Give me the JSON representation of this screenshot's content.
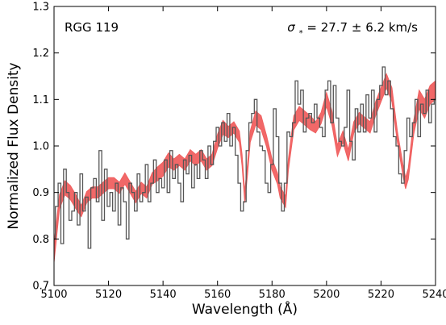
{
  "chart_data": {
    "type": "line",
    "title": "",
    "xlabel": "Wavelength (Å)",
    "ylabel": "Normalized Flux Density",
    "xlim": [
      5100,
      5240
    ],
    "ylim": [
      0.7,
      1.3
    ],
    "xticks": [
      "5100",
      "5120",
      "5140",
      "5160",
      "5180",
      "5200",
      "5220",
      "5240"
    ],
    "yticks": [
      "0.7",
      "0.8",
      "0.9",
      "1.0",
      "1.1",
      "1.2",
      "1.3"
    ],
    "grid": false,
    "legend": "none",
    "annotations": {
      "object": "RGG 119",
      "sigma_symbol": "σ",
      "sigma_subscript": "*",
      "sigma_text": "= 27.7 ± 6.2 km/s"
    },
    "colors": {
      "data": "#555555",
      "model": "#f06060"
    },
    "series": [
      {
        "style": "step",
        "x": [
          5100,
          5101,
          5102,
          5103,
          5104,
          5105,
          5106,
          5107,
          5108,
          5109,
          5110,
          5111,
          5112,
          5113,
          5114,
          5115,
          5116,
          5117,
          5118,
          5119,
          5120,
          5121,
          5122,
          5123,
          5124,
          5125,
          5126,
          5127,
          5128,
          5129,
          5130,
          5131,
          5132,
          5133,
          5134,
          5135,
          5136,
          5137,
          5138,
          5139,
          5140,
          5141,
          5142,
          5143,
          5144,
          5145,
          5146,
          5147,
          5148,
          5149,
          5150,
          5151,
          5152,
          5153,
          5154,
          5155,
          5156,
          5157,
          5158,
          5159,
          5160,
          5161,
          5162,
          5163,
          5164,
          5165,
          5166,
          5167,
          5168,
          5169,
          5170,
          5171,
          5172,
          5173,
          5174,
          5175,
          5176,
          5177,
          5178,
          5179,
          5180,
          5181,
          5182,
          5183,
          5184,
          5185,
          5186,
          5187,
          5188,
          5189,
          5190,
          5191,
          5192,
          5193,
          5194,
          5195,
          5196,
          5197,
          5198,
          5199,
          5200,
          5201,
          5202,
          5203,
          5204,
          5205,
          5206,
          5207,
          5208,
          5209,
          5210,
          5211,
          5212,
          5213,
          5214,
          5215,
          5216,
          5217,
          5218,
          5219,
          5220,
          5221,
          5222,
          5223,
          5224,
          5225,
          5226,
          5227,
          5228,
          5229,
          5230,
          5231,
          5232,
          5233,
          5234,
          5235,
          5236,
          5237,
          5238,
          5239,
          5240
        ],
        "values": [
          0.8,
          0.87,
          0.92,
          0.79,
          0.95,
          0.9,
          0.84,
          0.86,
          0.9,
          0.83,
          0.94,
          0.86,
          0.89,
          0.78,
          0.91,
          0.93,
          0.88,
          0.99,
          0.84,
          0.95,
          0.87,
          0.9,
          0.86,
          0.92,
          0.83,
          0.91,
          0.88,
          0.8,
          0.92,
          0.9,
          0.86,
          0.94,
          0.88,
          0.9,
          0.96,
          0.88,
          0.92,
          0.97,
          0.9,
          0.93,
          0.91,
          0.97,
          0.9,
          0.99,
          0.93,
          0.96,
          0.92,
          0.88,
          0.97,
          0.94,
          0.98,
          0.91,
          0.96,
          0.93,
          0.99,
          0.97,
          0.93,
          1.0,
          0.96,
          1.01,
          1.04,
          1.0,
          1.05,
          1.01,
          1.07,
          1.0,
          1.04,
          0.98,
          0.92,
          0.86,
          0.88,
          0.99,
          1.05,
          1.07,
          1.1,
          1.03,
          1.0,
          0.99,
          0.92,
          0.9,
          0.96,
          1.08,
          1.02,
          0.92,
          0.86,
          0.92,
          1.03,
          1.02,
          1.05,
          1.14,
          1.09,
          1.12,
          1.03,
          1.06,
          1.07,
          1.05,
          1.09,
          1.06,
          1.04,
          1.02,
          1.12,
          1.14,
          1.05,
          1.13,
          1.06,
          1.01,
          1.0,
          1.04,
          1.12,
          1.01,
          0.97,
          1.08,
          1.03,
          1.09,
          1.03,
          1.11,
          1.06,
          1.12,
          1.03,
          1.1,
          1.13,
          1.17,
          1.11,
          1.14,
          1.08,
          1.02,
          1.0,
          0.94,
          0.92,
          0.99,
          1.06,
          1.02,
          1.05,
          1.1,
          1.02,
          1.09,
          1.07,
          1.12,
          1.05,
          1.09,
          1.1
        ]
      },
      {
        "style": "band",
        "x": [
          5100,
          5102,
          5104,
          5106,
          5108,
          5110,
          5112,
          5114,
          5116,
          5118,
          5120,
          5122,
          5124,
          5126,
          5128,
          5130,
          5132,
          5134,
          5136,
          5138,
          5140,
          5142,
          5144,
          5146,
          5148,
          5150,
          5152,
          5154,
          5156,
          5158,
          5160,
          5162,
          5164,
          5166,
          5168,
          5169,
          5170,
          5171,
          5172,
          5174,
          5176,
          5178,
          5180,
          5182,
          5183,
          5184,
          5185,
          5186,
          5188,
          5190,
          5192,
          5194,
          5196,
          5198,
          5200,
          5202,
          5204,
          5206,
          5208,
          5210,
          5212,
          5214,
          5216,
          5218,
          5220,
          5222,
          5224,
          5226,
          5228,
          5229,
          5230,
          5232,
          5234,
          5236,
          5238,
          5240
        ],
        "values": [
          0.77,
          0.88,
          0.91,
          0.9,
          0.88,
          0.86,
          0.89,
          0.9,
          0.9,
          0.91,
          0.92,
          0.92,
          0.91,
          0.93,
          0.91,
          0.89,
          0.91,
          0.9,
          0.93,
          0.94,
          0.95,
          0.97,
          0.96,
          0.97,
          0.96,
          0.98,
          0.97,
          0.98,
          0.96,
          0.97,
          1.01,
          1.04,
          1.03,
          1.04,
          1.02,
          0.97,
          0.89,
          0.95,
          1.02,
          1.06,
          1.05,
          1.01,
          0.96,
          0.93,
          0.9,
          0.89,
          0.88,
          0.96,
          1.05,
          1.07,
          1.06,
          1.05,
          1.04,
          1.06,
          1.1,
          1.06,
          0.99,
          1.02,
          0.98,
          1.04,
          1.06,
          1.05,
          1.04,
          1.08,
          1.11,
          1.14,
          1.11,
          1.02,
          0.95,
          0.92,
          0.94,
          1.04,
          1.1,
          1.08,
          1.11,
          1.12
        ],
        "band_halfwidth": [
          0.02,
          0.015,
          0.015,
          0.015,
          0.015,
          0.012,
          0.012,
          0.012,
          0.012,
          0.012,
          0.012,
          0.012,
          0.012,
          0.012,
          0.012,
          0.012,
          0.012,
          0.012,
          0.012,
          0.015,
          0.015,
          0.015,
          0.012,
          0.012,
          0.012,
          0.012,
          0.012,
          0.012,
          0.012,
          0.012,
          0.015,
          0.015,
          0.012,
          0.012,
          0.012,
          0.012,
          0.012,
          0.012,
          0.012,
          0.015,
          0.015,
          0.012,
          0.012,
          0.012,
          0.012,
          0.012,
          0.012,
          0.012,
          0.015,
          0.015,
          0.015,
          0.015,
          0.012,
          0.012,
          0.015,
          0.015,
          0.012,
          0.012,
          0.012,
          0.012,
          0.012,
          0.012,
          0.012,
          0.015,
          0.015,
          0.015,
          0.015,
          0.012,
          0.012,
          0.012,
          0.012,
          0.015,
          0.02,
          0.02,
          0.02,
          0.02
        ]
      }
    ]
  }
}
